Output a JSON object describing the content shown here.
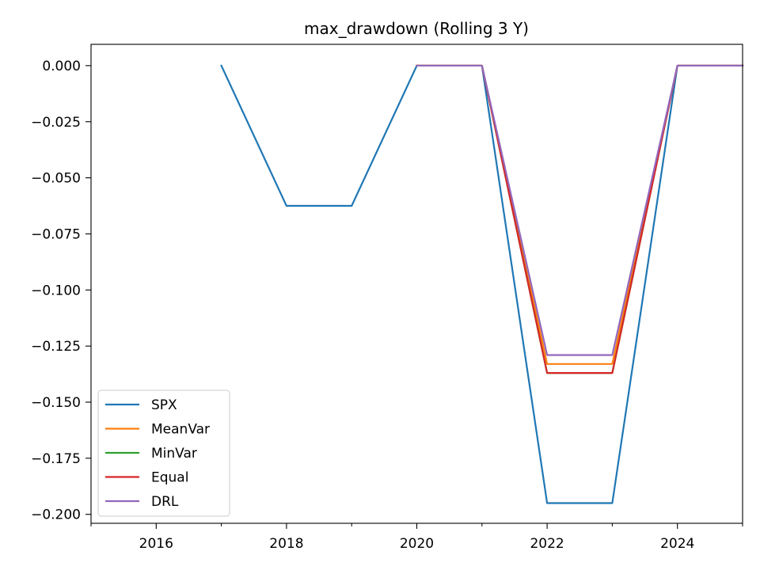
{
  "chart_data": {
    "type": "line",
    "title": "max_drawdown (Rolling 3 Y)",
    "xlabel": "",
    "ylabel": "",
    "xlim": [
      2015,
      2025
    ],
    "ylim": [
      -0.204,
      0.0095
    ],
    "x_ticks": [
      2016,
      2018,
      2020,
      2022,
      2024
    ],
    "x_minor_ticks": [
      2015,
      2017,
      2019,
      2021,
      2023,
      2025
    ],
    "y_ticks": [
      0.0,
      -0.025,
      -0.05,
      -0.075,
      -0.1,
      -0.125,
      -0.15,
      -0.175,
      -0.2
    ],
    "y_tick_labels": [
      "0.000",
      "−0.025",
      "−0.050",
      "−0.075",
      "−0.100",
      "−0.125",
      "−0.150",
      "−0.175",
      "−0.200"
    ],
    "grid": false,
    "legend_position": "lower-left",
    "series": [
      {
        "name": "SPX",
        "color": "#1f77b4",
        "x": [
          2017,
          2018,
          2019,
          2020,
          2021,
          2022,
          2023,
          2024,
          2025
        ],
        "y": [
          0.0,
          -0.0625,
          -0.0625,
          0.0,
          0.0,
          -0.195,
          -0.195,
          0.0,
          0.0
        ]
      },
      {
        "name": "MeanVar",
        "color": "#ff7f0e",
        "x": [
          2020,
          2021,
          2022,
          2023,
          2024,
          2025
        ],
        "y": [
          0.0,
          0.0,
          -0.133,
          -0.133,
          0.0,
          0.0
        ]
      },
      {
        "name": "MinVar",
        "color": "#2ca02c",
        "x": [
          2020,
          2021,
          2022,
          2023,
          2024,
          2025
        ],
        "y": [
          0.0,
          0.0,
          -0.137,
          -0.137,
          0.0,
          0.0
        ]
      },
      {
        "name": "Equal",
        "color": "#d62728",
        "x": [
          2020,
          2021,
          2022,
          2023,
          2024,
          2025
        ],
        "y": [
          0.0,
          0.0,
          -0.137,
          -0.137,
          0.0,
          0.0
        ]
      },
      {
        "name": "DRL",
        "color": "#9467bd",
        "x": [
          2020,
          2021,
          2022,
          2023,
          2024,
          2025
        ],
        "y": [
          0.0,
          0.0,
          -0.129,
          -0.129,
          0.0,
          0.0
        ]
      }
    ]
  }
}
